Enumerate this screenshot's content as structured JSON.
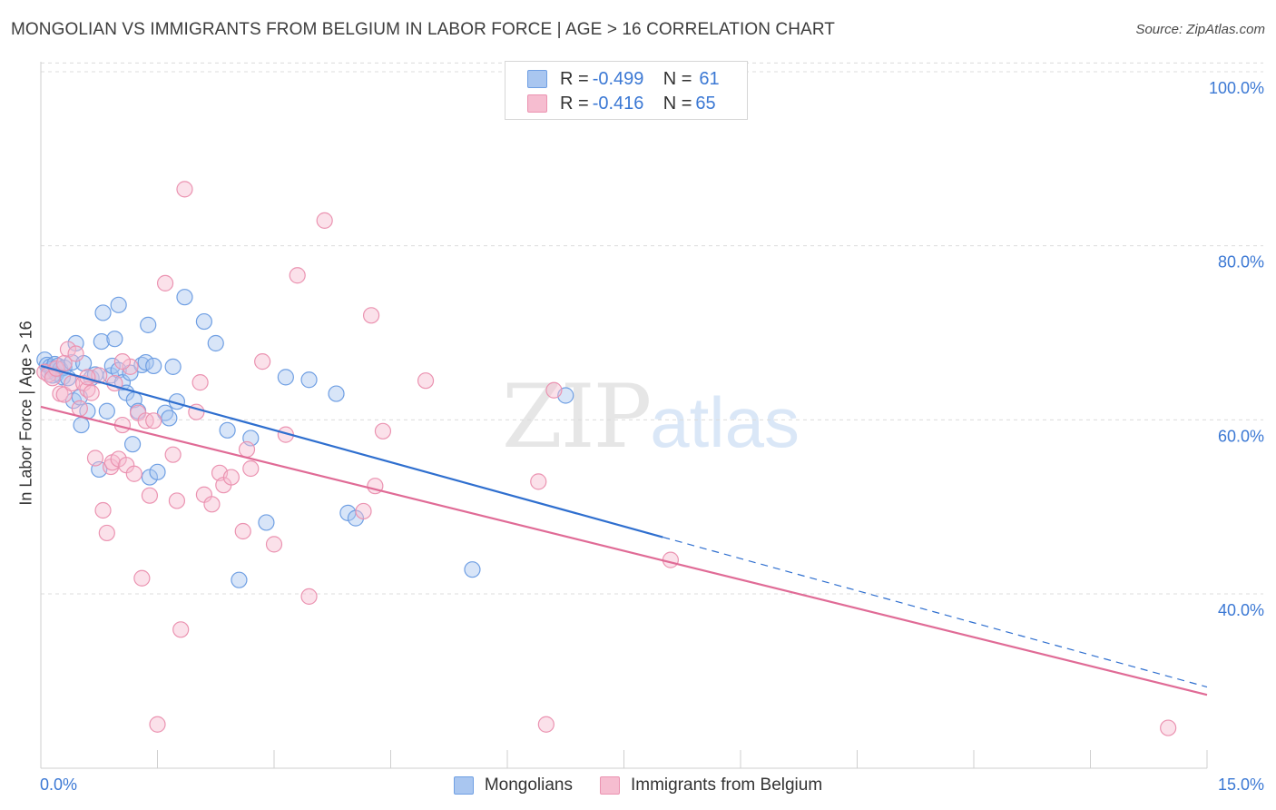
{
  "header": {
    "title": "MONGOLIAN VS IMMIGRANTS FROM BELGIUM IN LABOR FORCE | AGE > 16 CORRELATION CHART",
    "source": "Source: ZipAtlas.com"
  },
  "legend_top": {
    "rows": [
      {
        "r_label": "R = ",
        "r_value": "-0.499",
        "n_label": "N = ",
        "n_value": "61"
      },
      {
        "r_label": "R = ",
        "r_value": "-0.416",
        "n_label": "N = ",
        "n_value": "65"
      }
    ]
  },
  "watermark": {
    "zip": "ZIP",
    "atlas": "atlas"
  },
  "colors": {
    "mongolians_fill": "#a9c6f0",
    "mongolians_stroke": "#6f9fe3",
    "mongolians_line": "#2f6fcf",
    "belgium_fill": "#f6bdd0",
    "belgium_stroke": "#eb93b1",
    "belgium_line": "#e06b96",
    "tick_label": "#3b78d4",
    "grid": "#dcdcdc"
  },
  "chart_data": {
    "type": "scatter",
    "title": "MONGOLIAN VS IMMIGRANTS FROM BELGIUM IN LABOR FORCE | AGE > 16 CORRELATION CHART",
    "xlabel": "",
    "ylabel": "In Labor Force | Age > 16",
    "xlim": [
      0,
      15
    ],
    "ylim": [
      20,
      104
    ],
    "x_tick_labels": [
      "0.0%",
      "15.0%"
    ],
    "y_ticks": [
      40,
      60,
      80,
      100
    ],
    "y_tick_labels": [
      "40.0%",
      "60.0%",
      "80.0%",
      "100.0%"
    ],
    "grid": true,
    "legend_position": "bottom",
    "series": [
      {
        "name": "Mongolians",
        "r": -0.499,
        "n": 61,
        "trend": {
          "x0": 0,
          "y0": 66.2,
          "x1": 15,
          "y1": 29.3,
          "solid_until_x": 8.0
        },
        "points": [
          [
            0.05,
            66.9
          ],
          [
            0.08,
            66.3
          ],
          [
            0.1,
            65.6
          ],
          [
            0.12,
            66.1
          ],
          [
            0.15,
            65.9
          ],
          [
            0.18,
            66.4
          ],
          [
            0.2,
            65.3
          ],
          [
            0.22,
            66.2
          ],
          [
            0.25,
            65.8
          ],
          [
            0.28,
            64.9
          ],
          [
            0.3,
            66.0
          ],
          [
            0.35,
            64.8
          ],
          [
            0.4,
            66.6
          ],
          [
            0.42,
            62.2
          ],
          [
            0.45,
            68.8
          ],
          [
            0.5,
            62.6
          ],
          [
            0.52,
            59.4
          ],
          [
            0.55,
            66.5
          ],
          [
            0.6,
            61.0
          ],
          [
            0.65,
            64.8
          ],
          [
            0.7,
            65.2
          ],
          [
            0.75,
            54.3
          ],
          [
            0.78,
            69.0
          ],
          [
            0.8,
            72.3
          ],
          [
            0.85,
            61.0
          ],
          [
            0.9,
            65.1
          ],
          [
            0.92,
            66.2
          ],
          [
            0.95,
            69.3
          ],
          [
            1.0,
            65.7
          ],
          [
            1.0,
            73.2
          ],
          [
            1.05,
            64.3
          ],
          [
            1.1,
            63.1
          ],
          [
            1.15,
            65.4
          ],
          [
            1.18,
            57.2
          ],
          [
            1.2,
            62.3
          ],
          [
            1.25,
            61.0
          ],
          [
            1.3,
            66.3
          ],
          [
            1.35,
            66.6
          ],
          [
            1.38,
            70.9
          ],
          [
            1.4,
            53.4
          ],
          [
            1.45,
            66.2
          ],
          [
            1.5,
            54.0
          ],
          [
            1.6,
            60.8
          ],
          [
            1.65,
            60.2
          ],
          [
            1.7,
            66.1
          ],
          [
            1.75,
            62.1
          ],
          [
            1.85,
            74.1
          ],
          [
            2.1,
            71.3
          ],
          [
            2.25,
            68.8
          ],
          [
            2.4,
            58.8
          ],
          [
            2.55,
            41.6
          ],
          [
            2.7,
            57.9
          ],
          [
            2.9,
            48.2
          ],
          [
            3.15,
            64.9
          ],
          [
            3.45,
            64.6
          ],
          [
            3.8,
            63.0
          ],
          [
            3.95,
            49.3
          ],
          [
            4.05,
            48.7
          ],
          [
            5.55,
            42.8
          ],
          [
            6.75,
            62.8
          ],
          [
            0.15,
            65.1
          ]
        ]
      },
      {
        "name": "Immigrants from Belgium",
        "r": -0.416,
        "n": 65,
        "trend": {
          "x0": 0,
          "y0": 61.5,
          "x1": 15,
          "y1": 28.4
        },
        "points": [
          [
            0.05,
            65.5
          ],
          [
            0.1,
            65.2
          ],
          [
            0.15,
            64.8
          ],
          [
            0.2,
            65.9
          ],
          [
            0.25,
            63.0
          ],
          [
            0.3,
            62.9
          ],
          [
            0.35,
            68.1
          ],
          [
            0.4,
            64.2
          ],
          [
            0.45,
            67.6
          ],
          [
            0.5,
            61.3
          ],
          [
            0.55,
            64.2
          ],
          [
            0.6,
            63.5
          ],
          [
            0.65,
            63.1
          ],
          [
            0.7,
            55.6
          ],
          [
            0.75,
            65.1
          ],
          [
            0.8,
            49.6
          ],
          [
            0.85,
            47.0
          ],
          [
            0.9,
            54.6
          ],
          [
            0.92,
            55.1
          ],
          [
            0.95,
            64.2
          ],
          [
            1.0,
            55.5
          ],
          [
            1.05,
            59.4
          ],
          [
            1.1,
            54.8
          ],
          [
            1.15,
            66.1
          ],
          [
            1.2,
            53.8
          ],
          [
            1.25,
            60.8
          ],
          [
            1.3,
            41.8
          ],
          [
            1.35,
            59.9
          ],
          [
            1.4,
            51.3
          ],
          [
            1.45,
            59.9
          ],
          [
            1.5,
            25.0
          ],
          [
            1.6,
            75.7
          ],
          [
            1.7,
            56.0
          ],
          [
            1.75,
            50.7
          ],
          [
            1.8,
            35.9
          ],
          [
            1.85,
            86.5
          ],
          [
            2.0,
            60.9
          ],
          [
            2.05,
            64.3
          ],
          [
            2.1,
            51.4
          ],
          [
            2.2,
            50.3
          ],
          [
            2.3,
            53.9
          ],
          [
            2.35,
            52.5
          ],
          [
            2.45,
            53.4
          ],
          [
            2.6,
            47.2
          ],
          [
            2.65,
            56.6
          ],
          [
            2.7,
            54.4
          ],
          [
            2.85,
            66.7
          ],
          [
            3.0,
            45.7
          ],
          [
            3.15,
            58.3
          ],
          [
            3.3,
            76.6
          ],
          [
            3.45,
            39.7
          ],
          [
            3.65,
            82.9
          ],
          [
            4.15,
            49.5
          ],
          [
            4.25,
            72.0
          ],
          [
            4.3,
            52.4
          ],
          [
            4.4,
            58.7
          ],
          [
            4.95,
            64.5
          ],
          [
            6.4,
            52.9
          ],
          [
            6.5,
            25.0
          ],
          [
            6.6,
            63.4
          ],
          [
            8.1,
            43.9
          ],
          [
            14.5,
            24.6
          ],
          [
            0.3,
            66.5
          ],
          [
            0.6,
            64.9
          ],
          [
            1.05,
            66.7
          ]
        ]
      }
    ]
  }
}
